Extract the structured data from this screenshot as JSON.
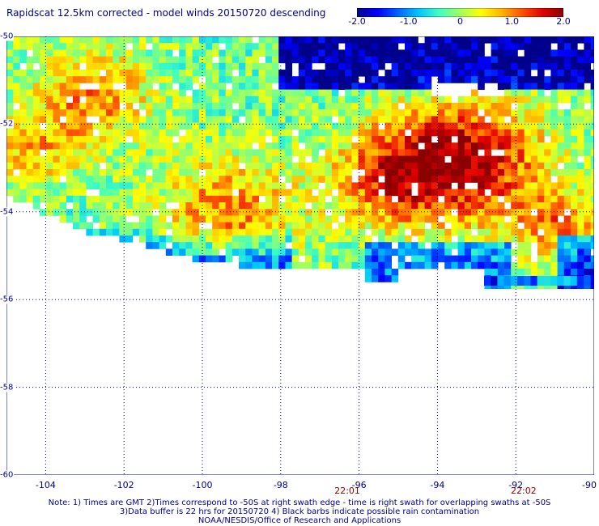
{
  "title": "Rapidscat 12.5km corrected - model winds 20150720 descending",
  "colorbar": {
    "ticks": [
      "-2.0",
      "-1.0",
      "0",
      "1.0",
      "2.0"
    ],
    "tick_values": [
      -2,
      -1,
      0,
      1,
      2
    ],
    "colors": [
      "#00008b",
      "#0000ff",
      "#0064ff",
      "#00c8ff",
      "#40ffc0",
      "#a0ff60",
      "#ffff00",
      "#ffb400",
      "#ff5000",
      "#e00000",
      "#8b0000"
    ]
  },
  "map": {
    "lat_labels": [
      "-50",
      "-52",
      "-54",
      "-56",
      "-58",
      "-60"
    ],
    "lat_values": [
      -50,
      -52,
      -54,
      -56,
      -58,
      -60
    ],
    "lon_labels": [
      "-104",
      "-102",
      "-100",
      "-98",
      "-96",
      "-94",
      "-92",
      "-90"
    ],
    "lon_values": [
      -104,
      -102,
      -100,
      -98,
      -96,
      -94,
      -92,
      -90
    ],
    "lon_range": [
      -105,
      -90
    ],
    "lat_range": [
      -60,
      -50
    ],
    "grid": "dotted",
    "field": "wind speed difference (corrected - model)",
    "range": [
      -2.0,
      2.0
    ]
  },
  "times": [
    {
      "label": "22:01",
      "lon": -96.3
    },
    {
      "label": "22:02",
      "lon": -91.8
    }
  ],
  "notes": [
    "Note: 1) Times are GMT 2)Times correspond to -50S at right swath edge - time is right swath for overlapping swaths at -50S",
    "3)Data buffer is 22 hrs for 20150720 4) Black barbs indicate possible rain contamination",
    "NOAA/NESDIS/Office of Research and Applications"
  ]
}
